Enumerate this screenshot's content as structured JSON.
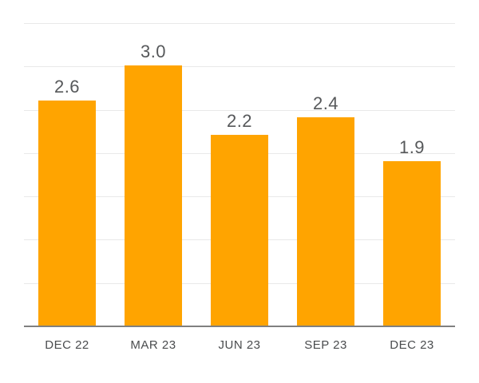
{
  "chart_data": {
    "type": "bar",
    "categories": [
      "DEC 22",
      "MAR 23",
      "JUN 23",
      "SEP 23",
      "DEC 23"
    ],
    "values": [
      2.6,
      3.0,
      2.2,
      2.4,
      1.9
    ],
    "value_labels": [
      "2.6",
      "3.0",
      "2.2",
      "2.4",
      "1.9"
    ],
    "title": "",
    "xlabel": "",
    "ylabel": "",
    "ylim": [
      0,
      3.5
    ],
    "grid": true,
    "grid_step": 0.5,
    "legend": false,
    "colors": {
      "bar": "#ffa400",
      "value_label": "#56585a",
      "tick_label": "#4a4c4e",
      "axis_line": "#808080",
      "gridline": "#e9e9e9"
    }
  }
}
